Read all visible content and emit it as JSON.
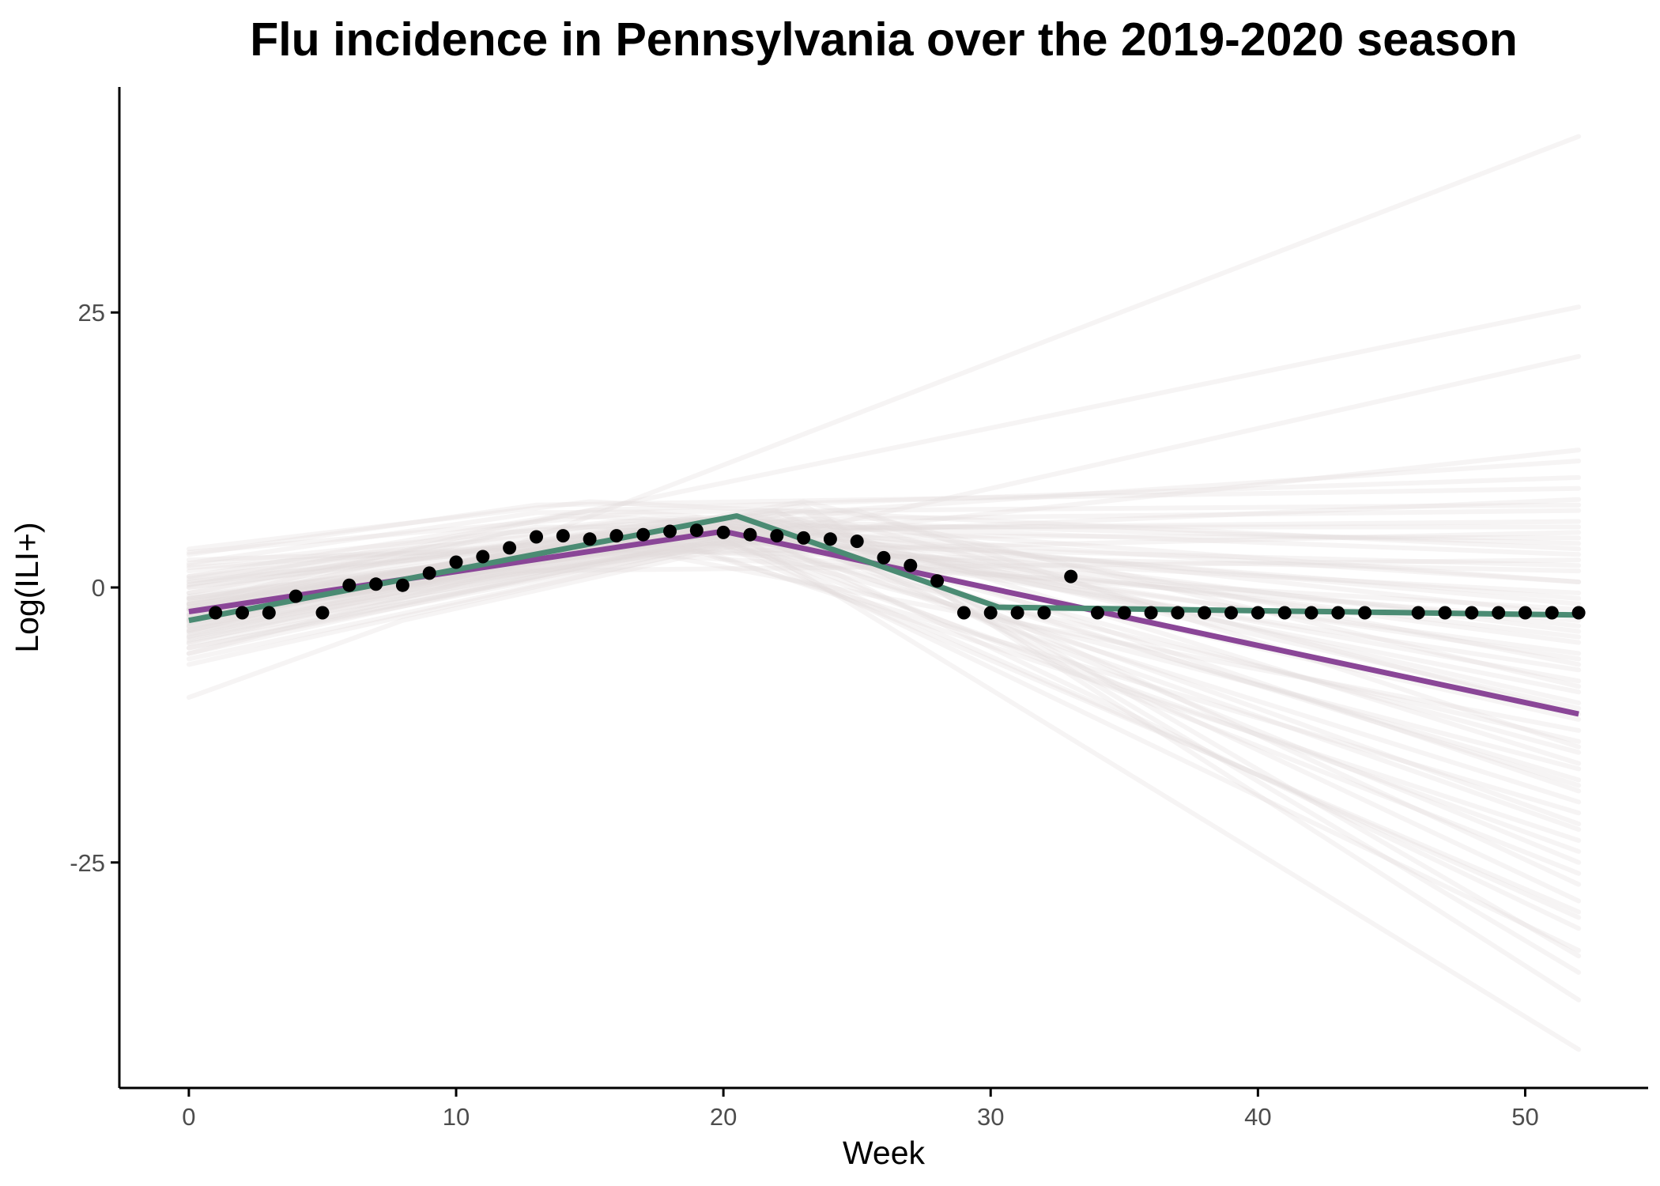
{
  "chart_data": {
    "type": "line",
    "title": "Flu incidence in Pennsylvania over the 2019-2020 season",
    "xlabel": "Week",
    "ylabel": "Log(ILI+)",
    "xlim": [
      -2.6,
      54.6
    ],
    "ylim": [
      -45.5,
      45.5
    ],
    "x_ticks": [
      {
        "value": 0,
        "label": "0"
      },
      {
        "value": 10,
        "label": "10"
      },
      {
        "value": 20,
        "label": "20"
      },
      {
        "value": 30,
        "label": "30"
      },
      {
        "value": 40,
        "label": "40"
      },
      {
        "value": 50,
        "label": "50"
      }
    ],
    "y_ticks": [
      {
        "value": -25,
        "label": "-25"
      },
      {
        "value": 0,
        "label": "0"
      },
      {
        "value": 25,
        "label": "25"
      }
    ],
    "grid": false,
    "legend": "none",
    "observed": {
      "color": "#000000",
      "x": [
        1,
        2,
        3,
        4,
        5,
        6,
        7,
        8,
        9,
        10,
        11,
        12,
        13,
        14,
        15,
        16,
        17,
        18,
        19,
        20,
        21,
        22,
        23,
        24,
        25,
        26,
        27,
        28,
        29,
        30,
        31,
        32,
        33,
        34,
        35,
        36,
        37,
        38,
        39,
        40,
        41,
        42,
        43,
        44,
        46,
        47,
        48,
        49,
        50,
        51,
        52
      ],
      "y": [
        -2.3,
        -2.3,
        -2.3,
        -0.8,
        -2.3,
        0.2,
        0.3,
        0.2,
        1.3,
        2.3,
        2.8,
        3.6,
        4.6,
        4.7,
        4.4,
        4.7,
        4.8,
        5.1,
        5.2,
        5.0,
        4.8,
        4.7,
        4.5,
        4.4,
        4.2,
        2.7,
        2.0,
        0.6,
        -2.3,
        -2.3,
        -2.3,
        -2.3,
        1.0,
        -2.3,
        -2.3,
        -2.3,
        -2.3,
        -2.3,
        -2.3,
        -2.3,
        -2.3,
        -2.3,
        -2.3,
        -2.3,
        -2.3,
        -2.3,
        -2.3,
        -2.3,
        -2.3,
        -2.3,
        -2.3
      ]
    },
    "series": [
      {
        "color": "#8a4697",
        "x": [
          0,
          20,
          52
        ],
        "y": [
          -2.2,
          5.1,
          -11.5
        ]
      },
      {
        "color": "#4b8b73",
        "x": [
          0,
          20.5,
          30.3,
          52
        ],
        "y": [
          -3.0,
          6.5,
          -1.8,
          -2.5
        ]
      }
    ],
    "posterior_samples": {
      "color": "#e2d9d9",
      "opacity": 0.3,
      "lines": [
        {
          "x": [
            0,
            20,
            52
          ],
          "y": [
            -3.5,
            4.2,
            -14.0
          ]
        },
        {
          "x": [
            0,
            20,
            52
          ],
          "y": [
            -1.5,
            5.8,
            -8.5
          ]
        },
        {
          "x": [
            0,
            21,
            52
          ],
          "y": [
            -4.2,
            5.5,
            -18.0
          ]
        },
        {
          "x": [
            0,
            19,
            52
          ],
          "y": [
            -0.8,
            4.8,
            -6.0
          ]
        },
        {
          "x": [
            0,
            20,
            52
          ],
          "y": [
            -2.7,
            6.5,
            -21.5
          ]
        },
        {
          "x": [
            0,
            22,
            52
          ],
          "y": [
            -5.1,
            4.9,
            -25.0
          ]
        },
        {
          "x": [
            0,
            18,
            52
          ],
          "y": [
            0.5,
            5.3,
            -3.5
          ]
        },
        {
          "x": [
            0,
            20,
            52
          ],
          "y": [
            -6.5,
            3.8,
            -29.5
          ]
        },
        {
          "x": [
            0,
            21,
            52
          ],
          "y": [
            -1.0,
            6.2,
            -11.0
          ]
        },
        {
          "x": [
            0,
            19,
            52
          ],
          "y": [
            -3.0,
            4.5,
            -16.5
          ]
        },
        {
          "x": [
            0,
            23,
            52
          ],
          "y": [
            -2.0,
            7.5,
            -33.5
          ]
        },
        {
          "x": [
            0,
            20,
            52
          ],
          "y": [
            1.8,
            5.0,
            -1.0
          ]
        },
        {
          "x": [
            0,
            17,
            52
          ],
          "y": [
            3.2,
            6.8,
            0.5
          ]
        },
        {
          "x": [
            0,
            24,
            52
          ],
          "y": [
            -4.0,
            6.0,
            -37.5
          ]
        },
        {
          "x": [
            0,
            20,
            52
          ],
          "y": [
            -3.8,
            5.6,
            -42.0
          ]
        },
        {
          "x": [
            0,
            21,
            52
          ],
          "y": [
            -2.4,
            4.2,
            -19.5
          ]
        },
        {
          "x": [
            0,
            19,
            52
          ],
          "y": [
            -5.5,
            3.5,
            -23.0
          ]
        },
        {
          "x": [
            0,
            20,
            52
          ],
          "y": [
            0.0,
            5.9,
            -9.5
          ]
        },
        {
          "x": [
            0,
            22,
            52
          ],
          "y": [
            -1.6,
            6.9,
            -27.0
          ]
        },
        {
          "x": [
            0,
            18,
            52
          ],
          "y": [
            -7.0,
            2.8,
            -13.0
          ]
        },
        {
          "x": [
            0,
            20,
            52
          ],
          "y": [
            -2.2,
            5.2,
            -5.0
          ]
        },
        {
          "x": [
            0,
            21,
            52
          ],
          "y": [
            -4.6,
            5.0,
            -31.0
          ]
        },
        {
          "x": [
            0,
            20,
            52
          ],
          "y": [
            2.5,
            4.0,
            2.0
          ]
        },
        {
          "x": [
            0,
            19,
            52
          ],
          "y": [
            -0.5,
            6.4,
            -17.5
          ]
        },
        {
          "x": [
            0,
            23,
            52
          ],
          "y": [
            -3.3,
            7.0,
            -35.0
          ]
        },
        {
          "x": [
            0,
            20,
            52
          ],
          "y": [
            -1.2,
            4.6,
            -7.5
          ]
        },
        {
          "x": [
            0,
            21,
            52
          ],
          "y": [
            -2.9,
            5.4,
            -15.0
          ]
        },
        {
          "x": [
            0,
            20,
            52
          ],
          "y": [
            1.0,
            6.0,
            -2.5
          ]
        },
        {
          "x": [
            0,
            18,
            52
          ],
          "y": [
            -3.9,
            4.0,
            -20.5
          ]
        },
        {
          "x": [
            0,
            22,
            52
          ],
          "y": [
            -6.0,
            5.8,
            -28.5
          ]
        },
        {
          "x": [
            0,
            20,
            52
          ],
          "y": [
            -2.5,
            5.3,
            -12.0
          ]
        },
        {
          "x": [
            0,
            19,
            52
          ],
          "y": [
            -1.8,
            5.1,
            -24.0
          ]
        },
        {
          "x": [
            0,
            21,
            52
          ],
          "y": [
            0.3,
            6.6,
            -10.5
          ]
        },
        {
          "x": [
            0,
            20,
            52
          ],
          "y": [
            -4.4,
            4.4,
            -33.0
          ]
        },
        {
          "x": [
            0,
            20,
            52
          ],
          "y": [
            -3.1,
            5.7,
            -4.0
          ]
        },
        {
          "x": [
            0,
            10,
            52
          ],
          "y": [
            -3.0,
            1.8,
            41.0
          ]
        },
        {
          "x": [
            0,
            10,
            52
          ],
          "y": [
            -1.5,
            4.5,
            25.5
          ]
        },
        {
          "x": [
            0,
            8,
            52
          ],
          "y": [
            -10.0,
            -3.0,
            21.0
          ]
        },
        {
          "x": [
            0,
            12,
            52
          ],
          "y": [
            -5.0,
            2.0,
            12.5
          ]
        },
        {
          "x": [
            0,
            12,
            52
          ],
          "y": [
            -2.0,
            5.0,
            11.5
          ]
        },
        {
          "x": [
            0,
            15,
            52
          ],
          "y": [
            1.0,
            7.0,
            10.0
          ]
        },
        {
          "x": [
            0,
            14,
            52
          ],
          "y": [
            -3.5,
            4.0,
            8.0
          ]
        },
        {
          "x": [
            0,
            16,
            52
          ],
          "y": [
            2.0,
            6.0,
            7.0
          ]
        },
        {
          "x": [
            0,
            13,
            52
          ],
          "y": [
            -0.5,
            5.5,
            5.5
          ]
        },
        {
          "x": [
            0,
            15,
            52
          ],
          "y": [
            -2.5,
            4.8,
            4.5
          ]
        },
        {
          "x": [
            0,
            17,
            52
          ],
          "y": [
            0.8,
            6.2,
            3.0
          ]
        },
        {
          "x": [
            0,
            14,
            52
          ],
          "y": [
            -4.5,
            3.5,
            1.5
          ]
        },
        {
          "x": [
            0,
            16,
            52
          ],
          "y": [
            -1.0,
            5.2,
            6.0
          ]
        },
        {
          "x": [
            0,
            13,
            52
          ],
          "y": [
            3.0,
            7.5,
            9.0
          ]
        },
        {
          "x": [
            0,
            12,
            52
          ],
          "y": [
            -6.0,
            1.5,
            2.5
          ]
        },
        {
          "x": [
            0,
            15,
            52
          ],
          "y": [
            -1.8,
            4.3,
            -0.5
          ]
        },
        {
          "x": [
            0,
            18,
            52
          ],
          "y": [
            1.5,
            5.9,
            -1.5
          ]
        },
        {
          "x": [
            0,
            14,
            52
          ],
          "y": [
            0.2,
            6.5,
            4.0
          ]
        },
        {
          "x": [
            0,
            16,
            52
          ],
          "y": [
            -3.2,
            3.9,
            -3.0
          ]
        },
        {
          "x": [
            0,
            13,
            52
          ],
          "y": [
            2.2,
            6.8,
            7.5
          ]
        },
        {
          "x": [
            0,
            19,
            52
          ],
          "y": [
            -2.0,
            5.0,
            -4.5
          ]
        },
        {
          "x": [
            0,
            11,
            52
          ],
          "y": [
            -4.0,
            2.8,
            5.0
          ]
        },
        {
          "x": [
            0,
            15,
            52
          ],
          "y": [
            3.5,
            7.8,
            3.5
          ]
        },
        {
          "x": [
            0,
            20,
            52
          ],
          "y": [
            -1.0,
            5.4,
            0.5
          ]
        },
        {
          "x": [
            0,
            17,
            52
          ],
          "y": [
            -5.5,
            3.0,
            -2.0
          ]
        },
        {
          "x": [
            0,
            23,
            52
          ],
          "y": [
            -2.0,
            7.8,
            -9.0
          ]
        },
        {
          "x": [
            0,
            25,
            52
          ],
          "y": [
            -1.5,
            7.0,
            -14.5
          ]
        },
        {
          "x": [
            0,
            24,
            52
          ],
          "y": [
            -3.0,
            6.2,
            -11.5
          ]
        },
        {
          "x": [
            0,
            26,
            52
          ],
          "y": [
            -2.5,
            5.5,
            -7.0
          ]
        },
        {
          "x": [
            0,
            22,
            52
          ],
          "y": [
            0.0,
            6.8,
            -16.0
          ]
        },
        {
          "x": [
            0,
            21,
            52
          ],
          "y": [
            -4.8,
            4.6,
            -22.0
          ]
        },
        {
          "x": [
            0,
            20,
            52
          ],
          "y": [
            -2.8,
            4.9,
            -26.0
          ]
        },
        {
          "x": [
            0,
            19,
            52
          ],
          "y": [
            -1.4,
            5.6,
            -30.0
          ]
        },
        {
          "x": [
            0,
            22,
            52
          ],
          "y": [
            -3.6,
            6.3,
            -18.5
          ]
        },
        {
          "x": [
            0,
            20,
            52
          ],
          "y": [
            0.6,
            5.2,
            -6.5
          ]
        }
      ]
    }
  }
}
